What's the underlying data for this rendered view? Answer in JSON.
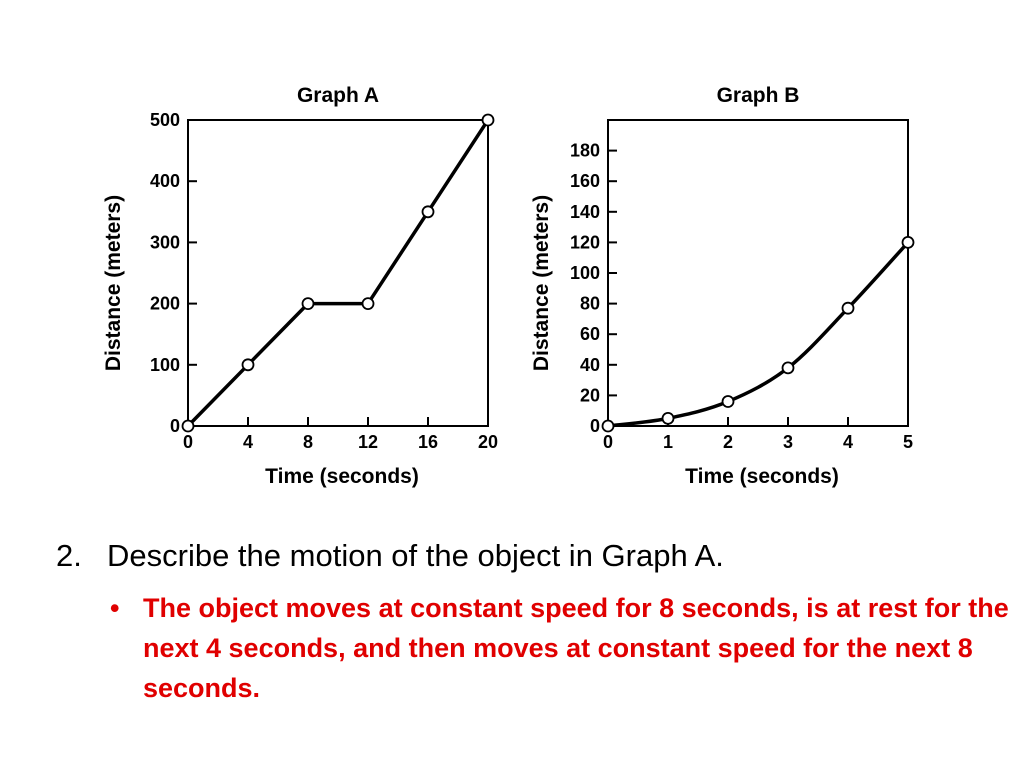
{
  "chart_data": [
    {
      "type": "line",
      "title": "Graph A",
      "xlabel": "Time (seconds)",
      "ylabel": "Distance (meters)",
      "x": [
        0,
        4,
        8,
        12,
        16,
        20
      ],
      "series": [
        {
          "values": [
            0,
            100,
            200,
            200,
            350,
            500
          ]
        }
      ],
      "xlim": [
        0,
        20
      ],
      "ylim": [
        0,
        500
      ],
      "xticks": [
        "0",
        "4",
        "8",
        "12",
        "16",
        "20"
      ],
      "yticks": [
        "0",
        "100",
        "200",
        "300",
        "400",
        "500"
      ],
      "grid": false,
      "markers": "open-circle"
    },
    {
      "type": "line",
      "title": "Graph B",
      "xlabel": "Time (seconds)",
      "ylabel": "Distance (meters)",
      "x": [
        0,
        1,
        2,
        3,
        4,
        5
      ],
      "series": [
        {
          "values": [
            0,
            5,
            16,
            38,
            77,
            120
          ]
        }
      ],
      "xlim": [
        0,
        5
      ],
      "ylim": [
        0,
        200
      ],
      "xticks": [
        "0",
        "1",
        "2",
        "3",
        "4",
        "5"
      ],
      "yticks": [
        "0",
        "20",
        "40",
        "60",
        "80",
        "100",
        "120",
        "140",
        "160",
        "180"
      ],
      "grid": false,
      "markers": "open-circle",
      "curve": "smooth"
    }
  ],
  "question": {
    "number": "2.",
    "text": "Describe the motion of the object in Graph A."
  },
  "answer": {
    "bullet": "•",
    "text": "The object moves at constant speed for 8 seconds, is at rest for the next 4 seconds, and then moves at constant speed for the next 8 seconds.",
    "color": "#e00000"
  }
}
